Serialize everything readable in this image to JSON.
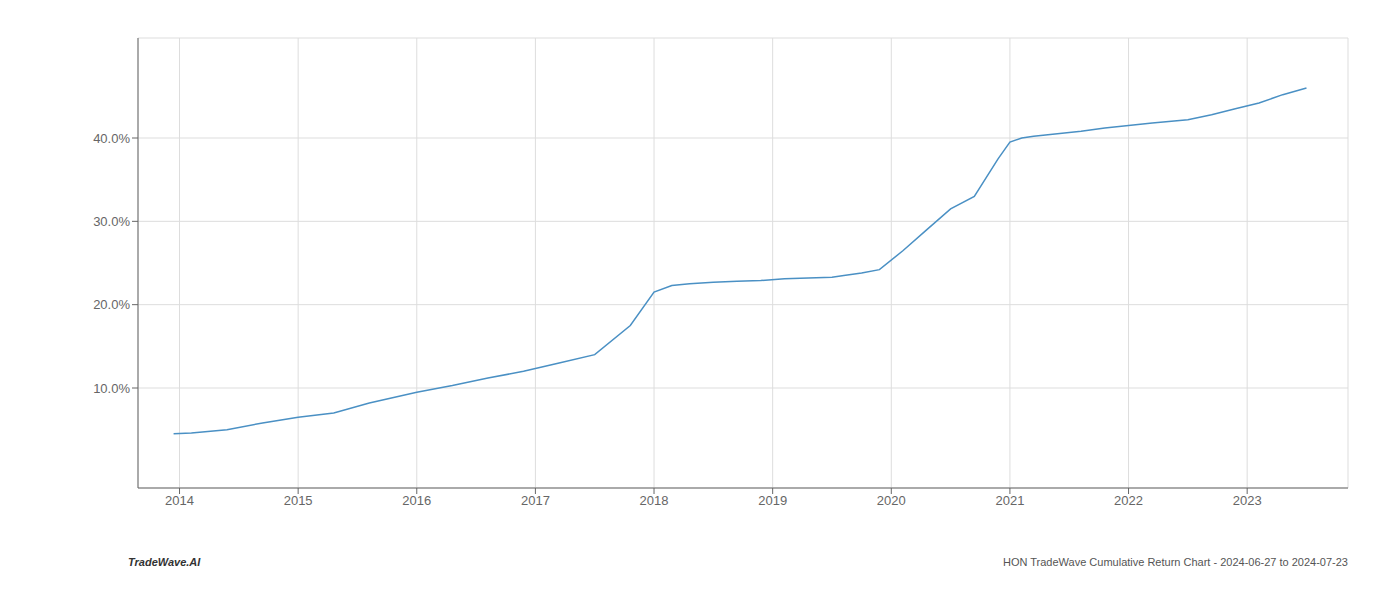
{
  "chart_data": {
    "type": "line",
    "x": [
      2013.95,
      2014.1,
      2014.4,
      2014.7,
      2015.0,
      2015.3,
      2015.6,
      2016.0,
      2016.3,
      2016.6,
      2016.9,
      2017.2,
      2017.5,
      2017.8,
      2018.0,
      2018.15,
      2018.3,
      2018.5,
      2018.7,
      2018.9,
      2019.1,
      2019.3,
      2019.5,
      2019.6,
      2019.75,
      2019.9,
      2020.1,
      2020.3,
      2020.5,
      2020.7,
      2020.9,
      2021.0,
      2021.1,
      2021.2,
      2021.4,
      2021.6,
      2021.8,
      2022.0,
      2022.2,
      2022.5,
      2022.7,
      2022.9,
      2023.1,
      2023.3,
      2023.5
    ],
    "values": [
      4.5,
      4.6,
      5.0,
      5.8,
      6.5,
      7.0,
      8.2,
      9.5,
      10.3,
      11.2,
      12.0,
      13.0,
      14.0,
      17.5,
      21.5,
      22.3,
      22.5,
      22.7,
      22.8,
      22.9,
      23.1,
      23.2,
      23.3,
      23.5,
      23.8,
      24.2,
      26.5,
      29.0,
      31.5,
      33.0,
      37.5,
      39.5,
      40.0,
      40.2,
      40.5,
      40.8,
      41.2,
      41.5,
      41.8,
      42.2,
      42.8,
      43.5,
      44.2,
      45.2,
      46.0
    ],
    "color": "#4A90C4",
    "xlim": [
      2013.65,
      2023.85
    ],
    "xticks": [
      2014,
      2015,
      2016,
      2017,
      2018,
      2019,
      2020,
      2021,
      2022,
      2023
    ],
    "ylim": [
      -2,
      52
    ],
    "yticks": [
      {
        "value": 10.0,
        "label": "10.0%"
      },
      {
        "value": 20.0,
        "label": "20.0%"
      },
      {
        "value": 30.0,
        "label": "30.0%"
      },
      {
        "value": 40.0,
        "label": "40.0%"
      }
    ],
    "grid": true,
    "annotations": [
      "TradeWave.AI",
      "HON TradeWave Cumulative Return Chart - 2024-06-27 to 2024-07-23"
    ]
  }
}
